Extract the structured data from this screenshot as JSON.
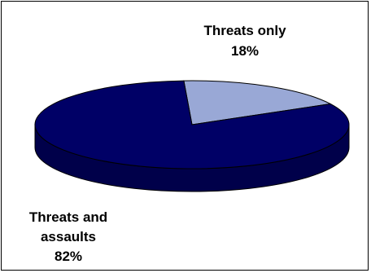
{
  "chart_data": {
    "type": "pie",
    "style": "3d",
    "title": "",
    "categories": [
      "Threats only",
      "Threats and assaults"
    ],
    "values": [
      18,
      82
    ],
    "value_labels": [
      "18%",
      "82%"
    ],
    "colors": [
      "#99A8D6",
      "#000066"
    ],
    "legend": "none"
  }
}
